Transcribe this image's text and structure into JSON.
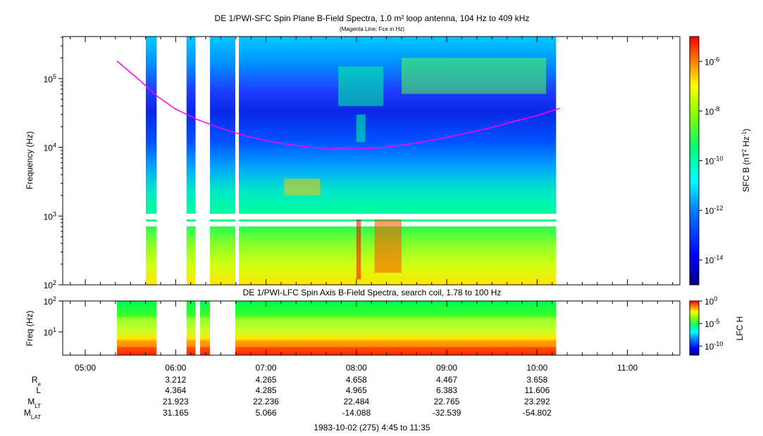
{
  "chart_data": [
    {
      "type": "heatmap",
      "title": "DE 1/PWI-SFC  Spin Plane B-Field Spectra, 1.0 m² loop antenna, 104 Hz to 409 kHz",
      "subtitle": "(Magenta Line: Fce in Hz)",
      "ylabel": "Frequency (Hz)",
      "yscale": "log",
      "ylim": [
        100,
        409000
      ],
      "yticks": [
        {
          "label": "10",
          "sup": "2",
          "value": 100
        },
        {
          "label": "10",
          "sup": "3",
          "value": 1000
        },
        {
          "label": "10",
          "sup": "4",
          "value": 10000
        },
        {
          "label": "10",
          "sup": "5",
          "value": 100000
        }
      ],
      "colorbar": {
        "label": "SFC B (nT² Hz⁻¹)",
        "ticks": [
          {
            "label": "10",
            "sup": "-6",
            "value": -6
          },
          {
            "label": "10",
            "sup": "-8",
            "value": -8
          },
          {
            "label": "10",
            "sup": "-10",
            "value": -10
          },
          {
            "label": "10",
            "sup": "-12",
            "value": -12
          },
          {
            "label": "10",
            "sup": "-14",
            "value": -14
          }
        ],
        "range_log": [
          -15,
          -5
        ]
      },
      "data_gaps_hours": [
        [
          4.75,
          5.67
        ],
        [
          5.79,
          6.12
        ],
        [
          6.22,
          6.38
        ],
        [
          6.66,
          6.7
        ],
        [
          10.21,
          11.58
        ]
      ],
      "fce_line": {
        "name": "Fce (Hz)",
        "color": "#ff00ff",
        "x": [
          5.35,
          5.6,
          5.8,
          6.0,
          6.25,
          6.5,
          6.75,
          7.0,
          7.25,
          7.5,
          7.75,
          8.0,
          8.25,
          8.5,
          8.75,
          9.0,
          9.25,
          9.5,
          9.75,
          10.0,
          10.25
        ],
        "y": [
          180000,
          95000,
          55000,
          36000,
          25000,
          19000,
          15000,
          12500,
          11000,
          10000,
          9500,
          9500,
          9800,
          10800,
          12000,
          14000,
          16500,
          19500,
          24000,
          29000,
          37000
        ]
      }
    },
    {
      "type": "heatmap",
      "title": "DE 1/PWI-LFC  Spin Axis B-Field Spectra, search coil, 1.78 to 100 Hz",
      "ylabel": "Freq (Hz)",
      "yscale": "log",
      "ylim": [
        1.78,
        100
      ],
      "yticks": [
        {
          "label": "10",
          "sup": "1",
          "value": 10
        },
        {
          "label": "10",
          "sup": "2",
          "value": 100
        }
      ],
      "colorbar": {
        "label": "LFC H",
        "ticks": [
          {
            "label": "10",
            "sup": "0",
            "value": 0
          },
          {
            "label": "10",
            "sup": "-5",
            "value": -5
          },
          {
            "label": "10",
            "sup": "-10",
            "value": -10
          }
        ],
        "range_log": [
          -12,
          0
        ]
      },
      "data_gaps_hours": [
        [
          4.75,
          5.35
        ],
        [
          5.79,
          6.12
        ],
        [
          6.22,
          6.27
        ],
        [
          6.38,
          6.66
        ],
        [
          10.21,
          11.58
        ]
      ]
    }
  ],
  "x_axis": {
    "range_hours": [
      4.75,
      11.58
    ],
    "ticks": [
      {
        "label": "05:00",
        "value": 5
      },
      {
        "label": "06:00",
        "value": 6
      },
      {
        "label": "07:00",
        "value": 7
      },
      {
        "label": "08:00",
        "value": 8
      },
      {
        "label": "09:00",
        "value": 9
      },
      {
        "label": "10:00",
        "value": 10
      },
      {
        "label": "11:00",
        "value": 11
      }
    ]
  },
  "ephemeris": {
    "row_labels": [
      {
        "main": "R",
        "sub": "e"
      },
      {
        "main": "L",
        "sub": ""
      },
      {
        "main": "M",
        "sub": "LT"
      },
      {
        "main": "M",
        "sub": "LAT"
      }
    ],
    "columns": [
      {
        "hour": 6,
        "values": [
          "3.212",
          "4.364",
          "21.923",
          "31.165"
        ]
      },
      {
        "hour": 7,
        "values": [
          "4.265",
          "4.285",
          "22.236",
          "5.066"
        ]
      },
      {
        "hour": 8,
        "values": [
          "4.658",
          "4.965",
          "22.484",
          "-14.088"
        ]
      },
      {
        "hour": 9,
        "values": [
          "4.467",
          "6.383",
          "22.765",
          "-32.539"
        ]
      },
      {
        "hour": 10,
        "values": [
          "3.658",
          "11.606",
          "23.292",
          "-54.802"
        ]
      }
    ]
  },
  "footer": "1983-10-02 (275) 4:45 to 11:35"
}
